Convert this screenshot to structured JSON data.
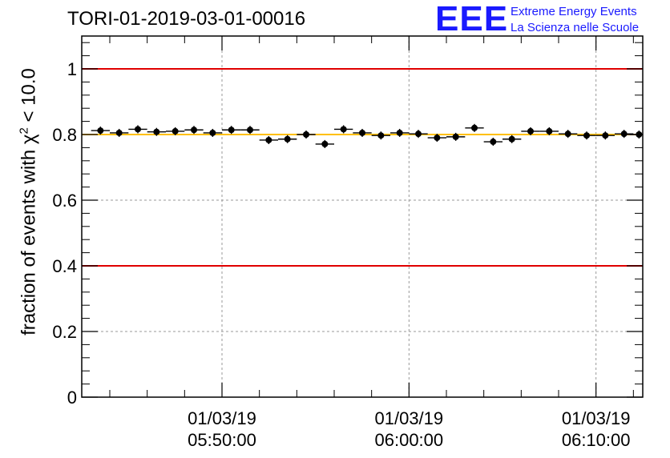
{
  "header": {
    "title": "TORI-01-2019-03-01-00016",
    "logo_mark": "EEE",
    "logo_line1": "Extreme Energy Events",
    "logo_line2": "La Scienza nelle Scuole",
    "logo_color": "#1a1aff"
  },
  "chart_data": {
    "type": "scatter",
    "title": "TORI-01-2019-03-01-00016",
    "ylabel_prefix": "fraction of events with ",
    "ylabel_symbol": "χ",
    "ylabel_power": "2",
    "ylabel_suffix": " < 10.0",
    "xlabel": "",
    "ylim": [
      0,
      1.1
    ],
    "yticks": [
      {
        "value": 0,
        "label": "0"
      },
      {
        "value": 0.2,
        "label": "0.2"
      },
      {
        "value": 0.4,
        "label": "0.4"
      },
      {
        "value": 0.6,
        "label": "0.6"
      },
      {
        "value": 0.8,
        "label": "0.8"
      },
      {
        "value": 1,
        "label": "1"
      }
    ],
    "xlim_minutes": [
      -7.5,
      22.5
    ],
    "xticks": [
      {
        "minute": 0,
        "date": "01/03/19",
        "time": "05:50:00"
      },
      {
        "minute": 10,
        "date": "01/03/19",
        "time": "06:00:00"
      },
      {
        "minute": 20,
        "date": "01/03/19",
        "time": "06:10:00"
      }
    ],
    "grid": true,
    "reference_lines": [
      {
        "value": 1.0,
        "color": "#e00000"
      },
      {
        "value": 0.4,
        "color": "#e00000"
      },
      {
        "value": 0.8,
        "color": "#ffbf00"
      }
    ],
    "point_color": "#000000",
    "points": [
      {
        "t": -6.5,
        "y": 0.812
      },
      {
        "t": -5.5,
        "y": 0.805
      },
      {
        "t": -4.5,
        "y": 0.816
      },
      {
        "t": -3.5,
        "y": 0.808
      },
      {
        "t": -2.5,
        "y": 0.81
      },
      {
        "t": -1.5,
        "y": 0.814
      },
      {
        "t": -0.5,
        "y": 0.805
      },
      {
        "t": 0.5,
        "y": 0.814
      },
      {
        "t": 1.5,
        "y": 0.814
      },
      {
        "t": 2.5,
        "y": 0.783
      },
      {
        "t": 3.5,
        "y": 0.786
      },
      {
        "t": 4.5,
        "y": 0.8
      },
      {
        "t": 5.5,
        "y": 0.771
      },
      {
        "t": 6.5,
        "y": 0.816
      },
      {
        "t": 7.5,
        "y": 0.805
      },
      {
        "t": 8.5,
        "y": 0.797
      },
      {
        "t": 9.5,
        "y": 0.805
      },
      {
        "t": 10.5,
        "y": 0.802
      },
      {
        "t": 11.5,
        "y": 0.79
      },
      {
        "t": 12.5,
        "y": 0.793
      },
      {
        "t": 13.5,
        "y": 0.82
      },
      {
        "t": 14.5,
        "y": 0.778
      },
      {
        "t": 15.5,
        "y": 0.786
      },
      {
        "t": 16.5,
        "y": 0.81
      },
      {
        "t": 17.5,
        "y": 0.81
      },
      {
        "t": 18.5,
        "y": 0.802
      },
      {
        "t": 19.5,
        "y": 0.797
      },
      {
        "t": 20.5,
        "y": 0.797
      },
      {
        "t": 21.5,
        "y": 0.802
      },
      {
        "t": 22.3,
        "y": 0.8
      }
    ]
  }
}
